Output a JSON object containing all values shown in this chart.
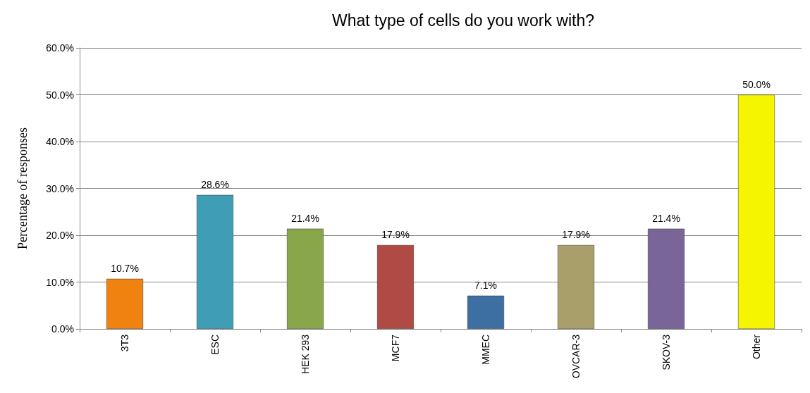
{
  "chart_data": {
    "type": "bar",
    "title": "What type of cells do you work with?",
    "ylabel": "Percentage of responses",
    "categories": [
      "3T3",
      "ESC",
      "HEK 293",
      "MCF7",
      "MMEC",
      "OVCAR-3",
      "SKOV-3",
      "Other"
    ],
    "values": [
      10.7,
      28.6,
      21.4,
      17.9,
      7.1,
      17.9,
      21.4,
      50.0
    ],
    "colors": [
      "#f0820f",
      "#3f9db5",
      "#8aa64b",
      "#b04a45",
      "#3e6fa3",
      "#a89f6a",
      "#7a6599",
      "#f5f500"
    ],
    "value_labels": [
      "10.7%",
      "28.6%",
      "21.4%",
      "17.9%",
      "7.1%",
      "17.9%",
      "21.4%",
      "50.0%"
    ],
    "ylim": [
      0,
      60
    ],
    "yticks": [
      {
        "value": 0,
        "label": "0.0%"
      },
      {
        "value": 10,
        "label": "10.0%"
      },
      {
        "value": 20,
        "label": "20.0%"
      },
      {
        "value": 30,
        "label": "30.0%"
      },
      {
        "value": 40,
        "label": "40.0%"
      },
      {
        "value": 50,
        "label": "50.0%"
      },
      {
        "value": 60,
        "label": "60.0%"
      }
    ],
    "grid": true
  }
}
